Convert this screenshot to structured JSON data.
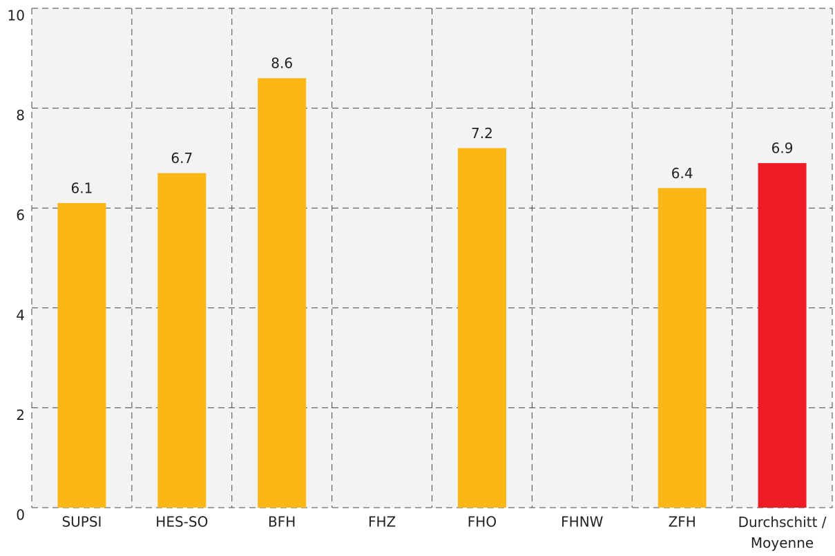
{
  "chart_data": {
    "type": "bar",
    "categories": [
      "SUPSI",
      "HES-SO",
      "BFH",
      "FHZ",
      "FHO",
      "FHNW",
      "ZFH",
      "Durchschitt / Moyenne"
    ],
    "values": [
      6.1,
      6.7,
      8.6,
      null,
      7.2,
      null,
      6.4,
      6.9
    ],
    "colors": [
      "#fbb716",
      "#fbb716",
      "#fbb716",
      "#fbb716",
      "#fbb716",
      "#fbb716",
      "#fbb716",
      "#ee1c25"
    ],
    "ylim": [
      0,
      10
    ],
    "yticks": [
      0,
      2,
      4,
      6,
      8,
      10
    ],
    "grid": true
  }
}
